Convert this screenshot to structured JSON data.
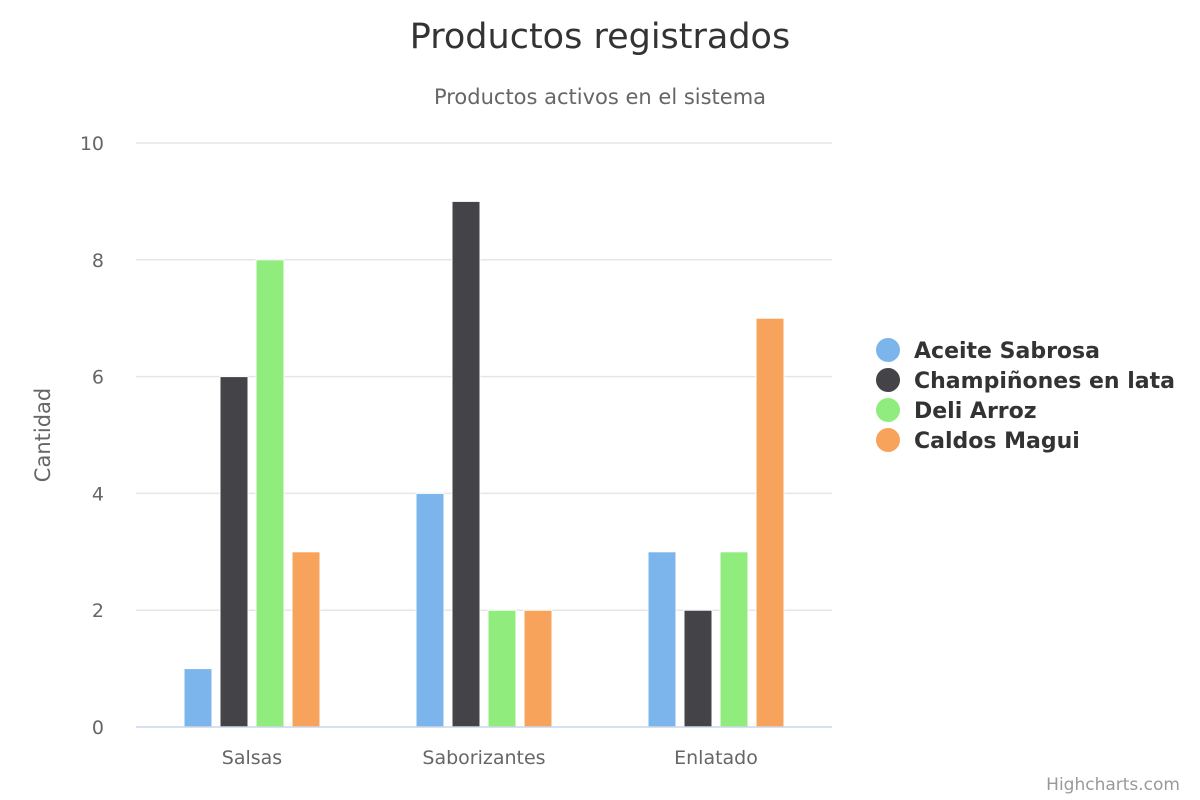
{
  "chart_data": {
    "type": "bar",
    "title": "Productos registrados",
    "subtitle": "Productos activos en el sistema",
    "xlabel": "",
    "ylabel": "Cantidad",
    "categories": [
      "Salsas",
      "Saborizantes",
      "Enlatado"
    ],
    "series": [
      {
        "name": "Aceite Sabrosa",
        "color": "#7cb5ec",
        "values": [
          1,
          4,
          3
        ]
      },
      {
        "name": "Champiñones en lata",
        "color": "#434348",
        "values": [
          6,
          9,
          2
        ]
      },
      {
        "name": "Deli Arroz",
        "color": "#90ed7d",
        "values": [
          8,
          2,
          3
        ]
      },
      {
        "name": "Caldos Magui",
        "color": "#f7a35c",
        "values": [
          3,
          2,
          7
        ]
      }
    ],
    "ylim": [
      0,
      10
    ],
    "yticks": [
      0,
      2,
      4,
      6,
      8,
      10
    ],
    "grid": true,
    "legend_position": "right"
  },
  "credits": "Highcharts.com"
}
